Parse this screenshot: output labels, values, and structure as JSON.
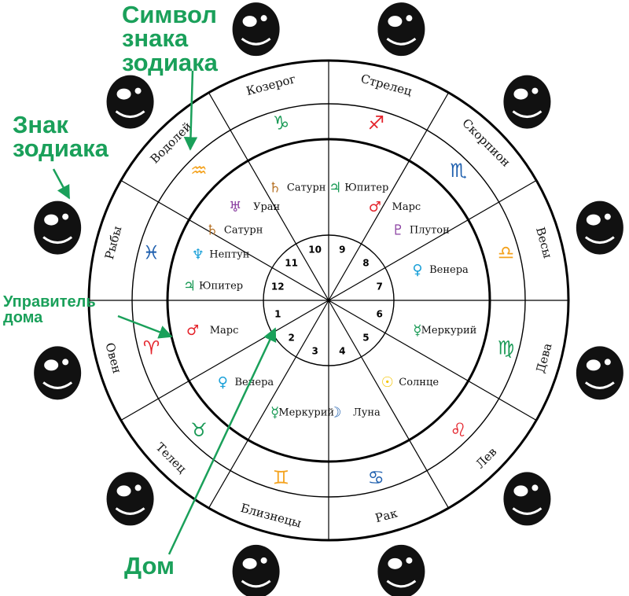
{
  "annotations": {
    "zodiac_symbol": "Символ знака зодиака",
    "zodiac_sign": "Знак зодиака",
    "house_ruler": "Управитель дома",
    "house": "Дом"
  },
  "colors": {
    "annotation": "#1aa05a",
    "lines": "#000000",
    "aries": "#e4232b",
    "taurus": "#1a9a56",
    "gemini": "#f4a21d",
    "cancer": "#1e5fae",
    "leo": "#e4232b",
    "virgo": "#1a9a56",
    "libra": "#f4a21d",
    "scorpio": "#1e5fae",
    "sagittarius": "#e4232b",
    "capricorn": "#1a9a56",
    "aquarius": "#f4a21d",
    "pisces": "#1e5fae"
  },
  "signs": [
    {
      "name": "Овен",
      "glyph": "♈",
      "color": "#e4232b",
      "icon": "ram-icon"
    },
    {
      "name": "Телец",
      "glyph": "♉",
      "color": "#1a9a56",
      "icon": "bull-icon"
    },
    {
      "name": "Близнецы",
      "glyph": "♊",
      "color": "#f4a21d",
      "icon": "twins-icon"
    },
    {
      "name": "Рак",
      "glyph": "♋",
      "color": "#1e5fae",
      "icon": "crab-icon"
    },
    {
      "name": "Лев",
      "glyph": "♌",
      "color": "#e4232b",
      "icon": "lion-icon"
    },
    {
      "name": "Дева",
      "glyph": "♍",
      "color": "#1a9a56",
      "icon": "virgin-icon"
    },
    {
      "name": "Весы",
      "glyph": "♎",
      "color": "#f4a21d",
      "icon": "scales-icon"
    },
    {
      "name": "Скорпион",
      "glyph": "♏",
      "color": "#1e5fae",
      "icon": "scorpion-icon"
    },
    {
      "name": "Стрелец",
      "glyph": "♐",
      "color": "#e4232b",
      "icon": "archer-icon"
    },
    {
      "name": "Козерог",
      "glyph": "♑",
      "color": "#1a9a56",
      "icon": "goat-icon"
    },
    {
      "name": "Водолей",
      "glyph": "♒",
      "color": "#f4a21d",
      "icon": "water-bearer-icon"
    },
    {
      "name": "Рыбы",
      "glyph": "♓",
      "color": "#1e5fae",
      "icon": "fish-icon"
    }
  ],
  "houses": [
    {
      "number": "1",
      "rulers": [
        {
          "name": "Марс",
          "glyph": "♂",
          "color": "#e4232b"
        }
      ]
    },
    {
      "number": "2",
      "rulers": [
        {
          "name": "Венера",
          "glyph": "♀",
          "color": "#1aa0d8"
        }
      ]
    },
    {
      "number": "3",
      "rulers": [
        {
          "name": "Меркурий",
          "glyph": "☿",
          "color": "#1a9a56"
        }
      ]
    },
    {
      "number": "4",
      "rulers": [
        {
          "name": "Луна",
          "glyph": "☽",
          "color": "#1e5fae"
        }
      ]
    },
    {
      "number": "5",
      "rulers": [
        {
          "name": "Солнце",
          "glyph": "☉",
          "color": "#f4c400"
        }
      ]
    },
    {
      "number": "6",
      "rulers": [
        {
          "name": "Меркурий",
          "glyph": "☿",
          "color": "#1a9a56"
        }
      ]
    },
    {
      "number": "7",
      "rulers": [
        {
          "name": "Венера",
          "glyph": "♀",
          "color": "#1aa0d8"
        }
      ]
    },
    {
      "number": "8",
      "rulers": [
        {
          "name": "Плутон",
          "glyph": "♇",
          "color": "#8a3fa0"
        },
        {
          "name": "Марс",
          "glyph": "♂",
          "color": "#e4232b"
        }
      ]
    },
    {
      "number": "9",
      "rulers": [
        {
          "name": "Юпитер",
          "glyph": "♃",
          "color": "#1a9a56"
        }
      ]
    },
    {
      "number": "10",
      "rulers": [
        {
          "name": "Сатурн",
          "glyph": "♄",
          "color": "#b8752a"
        }
      ]
    },
    {
      "number": "11",
      "rulers": [
        {
          "name": "Уран",
          "glyph": "♅",
          "color": "#8a3fa0"
        },
        {
          "name": "Сатурн",
          "glyph": "♄",
          "color": "#b8752a"
        }
      ]
    },
    {
      "number": "12",
      "rulers": [
        {
          "name": "Нептун",
          "glyph": "♆",
          "color": "#1aa0d8"
        },
        {
          "name": "Юпитер",
          "glyph": "♃",
          "color": "#1a9a56"
        }
      ]
    }
  ]
}
